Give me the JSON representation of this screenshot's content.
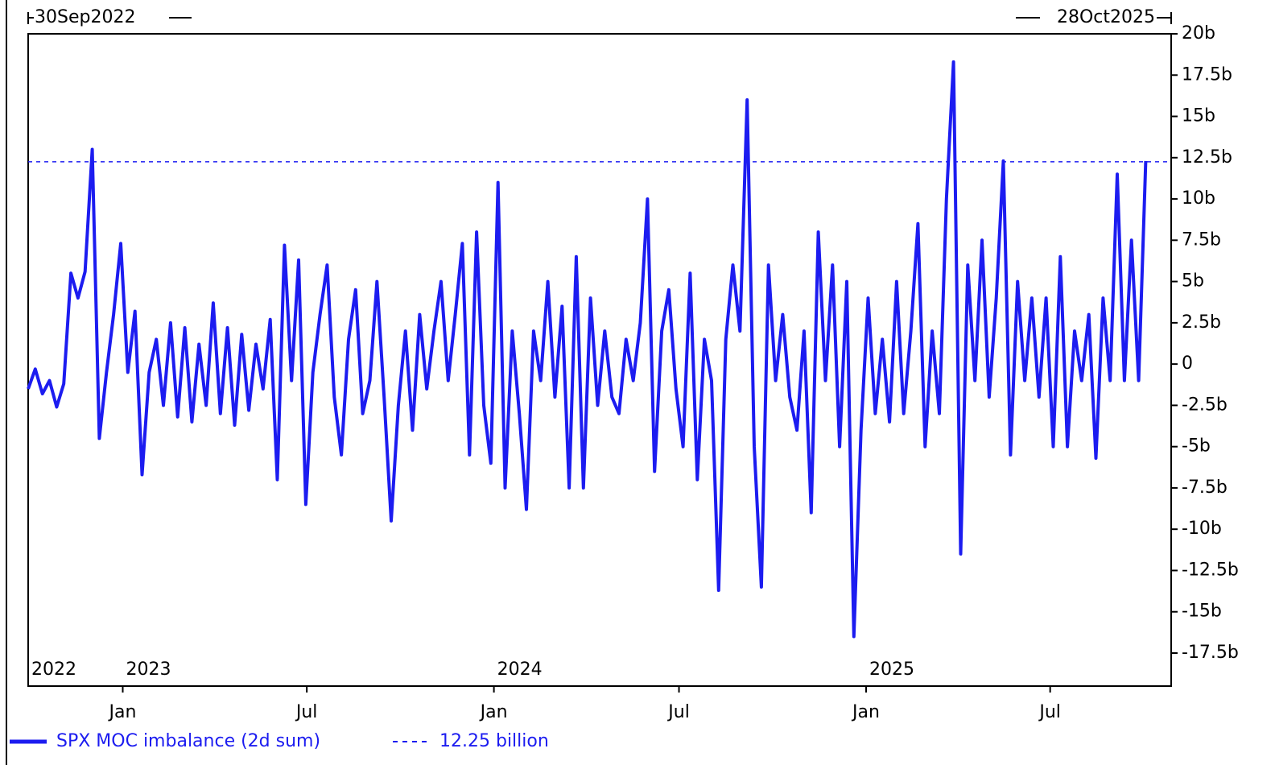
{
  "chart_data": {
    "type": "line",
    "start_label": "30Sep2022",
    "end_label": "28Oct2025",
    "xlim": [
      "2022-09-30",
      "2025-10-28"
    ],
    "ylim": [
      -19.5,
      20
    ],
    "yticks": [
      {
        "value": 20,
        "label": "20b"
      },
      {
        "value": 17.5,
        "label": "17.5b"
      },
      {
        "value": 15,
        "label": "15b"
      },
      {
        "value": 12.5,
        "label": "12.5b"
      },
      {
        "value": 10,
        "label": "10b"
      },
      {
        "value": 7.5,
        "label": "7.5b"
      },
      {
        "value": 5,
        "label": "5b"
      },
      {
        "value": 2.5,
        "label": "2.5b"
      },
      0,
      {
        "value": -2.5,
        "label": "-2.5b"
      },
      {
        "value": -5,
        "label": "-5b"
      },
      {
        "value": -7.5,
        "label": "-7.5b"
      },
      {
        "value": -10,
        "label": "-10b"
      },
      {
        "value": -12.5,
        "label": "-12.5b"
      },
      {
        "value": -15,
        "label": "-15b"
      },
      {
        "value": -17.5,
        "label": "-17.5b"
      }
    ],
    "xticks": [
      {
        "value": "2023-01-01",
        "label": "Jan"
      },
      {
        "value": "2023-07-01",
        "label": "Jul"
      },
      {
        "value": "2024-01-01",
        "label": "Jan"
      },
      {
        "value": "2024-07-01",
        "label": "Jul"
      },
      {
        "value": "2025-01-01",
        "label": "Jan"
      },
      {
        "value": "2025-07-01",
        "label": "Jul"
      }
    ],
    "year_labels": [
      {
        "value": "2022-09-30",
        "label": "2022"
      },
      {
        "value": "2023-01-01",
        "label": "2023"
      },
      {
        "value": "2024-01-01",
        "label": "2024"
      },
      {
        "value": "2025-01-01",
        "label": "2025"
      }
    ],
    "reference": {
      "value": 12.25,
      "label": "12.25 billion",
      "color": "#1c1cf0"
    },
    "x": [
      "2022-09-30",
      "2022-10-07",
      "2022-10-14",
      "2022-10-21",
      "2022-10-28",
      "2022-11-04",
      "2022-11-11",
      "2022-11-18",
      "2022-11-25",
      "2022-12-02",
      "2022-12-09",
      "2022-12-16",
      "2022-12-23",
      "2022-12-30",
      "2023-01-06",
      "2023-01-13",
      "2023-01-20",
      "2023-01-27",
      "2023-02-03",
      "2023-02-10",
      "2023-02-17",
      "2023-02-24",
      "2023-03-03",
      "2023-03-10",
      "2023-03-17",
      "2023-03-24",
      "2023-03-31",
      "2023-04-07",
      "2023-04-14",
      "2023-04-21",
      "2023-04-28",
      "2023-05-05",
      "2023-05-12",
      "2023-05-19",
      "2023-05-26",
      "2023-06-02",
      "2023-06-09",
      "2023-06-16",
      "2023-06-23",
      "2023-06-30",
      "2023-07-07",
      "2023-07-14",
      "2023-07-21",
      "2023-07-28",
      "2023-08-04",
      "2023-08-11",
      "2023-08-18",
      "2023-08-25",
      "2023-09-01",
      "2023-09-08",
      "2023-09-15",
      "2023-09-22",
      "2023-09-29",
      "2023-10-06",
      "2023-10-13",
      "2023-10-20",
      "2023-10-27",
      "2023-11-03",
      "2023-11-10",
      "2023-11-17",
      "2023-11-24",
      "2023-12-01",
      "2023-12-08",
      "2023-12-15",
      "2023-12-22",
      "2023-12-29",
      "2024-01-05",
      "2024-01-12",
      "2024-01-19",
      "2024-01-26",
      "2024-02-02",
      "2024-02-09",
      "2024-02-16",
      "2024-02-23",
      "2024-03-01",
      "2024-03-08",
      "2024-03-15",
      "2024-03-22",
      "2024-03-29",
      "2024-04-05",
      "2024-04-12",
      "2024-04-19",
      "2024-04-26",
      "2024-05-03",
      "2024-05-10",
      "2024-05-17",
      "2024-05-24",
      "2024-05-31",
      "2024-06-07",
      "2024-06-14",
      "2024-06-21",
      "2024-06-28",
      "2024-07-05",
      "2024-07-12",
      "2024-07-19",
      "2024-07-26",
      "2024-08-02",
      "2024-08-09",
      "2024-08-16",
      "2024-08-23",
      "2024-08-30",
      "2024-09-06",
      "2024-09-13",
      "2024-09-20",
      "2024-09-27",
      "2024-10-04",
      "2024-10-11",
      "2024-10-18",
      "2024-10-25",
      "2024-11-01",
      "2024-11-08",
      "2024-11-15",
      "2024-11-22",
      "2024-11-29",
      "2024-12-06",
      "2024-12-13",
      "2024-12-20",
      "2024-12-27",
      "2025-01-03",
      "2025-01-10",
      "2025-01-17",
      "2025-01-24",
      "2025-01-31",
      "2025-02-07",
      "2025-02-14",
      "2025-02-21",
      "2025-02-28",
      "2025-03-07",
      "2025-03-14",
      "2025-03-21",
      "2025-03-28",
      "2025-04-04",
      "2025-04-11",
      "2025-04-18",
      "2025-04-25",
      "2025-05-02",
      "2025-05-09",
      "2025-05-16",
      "2025-05-23",
      "2025-05-30",
      "2025-06-06",
      "2025-06-13",
      "2025-06-20",
      "2025-06-27",
      "2025-07-04",
      "2025-07-11",
      "2025-07-18",
      "2025-07-25",
      "2025-08-01",
      "2025-08-08",
      "2025-08-15",
      "2025-08-22",
      "2025-08-29",
      "2025-09-05",
      "2025-09-12",
      "2025-09-19",
      "2025-09-26",
      "2025-10-03"
    ],
    "series": [
      {
        "name": "SPX MOC imbalance (2d sum)",
        "color": "#1c1cf0",
        "values": [
          -1.5,
          -0.3,
          -1.8,
          -1,
          -2.6,
          -1.2,
          5.5,
          4,
          5.6,
          13,
          -4.5,
          -0.5,
          3,
          7.3,
          -0.5,
          3.2,
          -6.7,
          -0.5,
          1.5,
          -2.5,
          2.5,
          -3.2,
          2.2,
          -3.5,
          1.2,
          -2.5,
          3.7,
          -3,
          2.2,
          -3.7,
          1.8,
          -2.8,
          1.2,
          -1.5,
          2.7,
          -7,
          7.2,
          -1,
          6.3,
          -8.5,
          -0.5,
          3,
          6,
          -2,
          -5.5,
          1.5,
          4.5,
          -3,
          -1,
          5,
          -2,
          -9.5,
          -2.5,
          2,
          -4,
          3,
          -1.5,
          2,
          5,
          -1,
          3,
          7.3,
          -5.5,
          8,
          -2.5,
          -6,
          11,
          -7.5,
          2,
          -3,
          -8.8,
          2,
          -1,
          5,
          -2,
          3.5,
          -7.5,
          6.5,
          -7.5,
          4,
          -2.5,
          2,
          -2,
          -3,
          1.5,
          -1,
          2.5,
          10,
          -6.5,
          2,
          4.5,
          -1.5,
          -5,
          5.5,
          -7,
          1.5,
          -1,
          -13.7,
          1.5,
          6,
          2,
          16,
          -5,
          -13.5,
          6,
          -1,
          3,
          -2,
          -4,
          2,
          -9,
          8,
          -1,
          6,
          -5,
          5,
          -16.5,
          -4,
          4,
          -3,
          1.5,
          -3.5,
          5,
          -3,
          2,
          8.5,
          -5,
          2,
          -3,
          10,
          18.3,
          -11.5,
          6,
          -1,
          7.5,
          -2,
          4,
          12.3,
          -5.5,
          5,
          -1,
          4,
          -2,
          4,
          -5,
          6.5,
          -5,
          2,
          -1,
          3,
          -5.7,
          4,
          -1,
          11.5,
          -1,
          7.5,
          -1,
          12.3
        ]
      }
    ]
  }
}
